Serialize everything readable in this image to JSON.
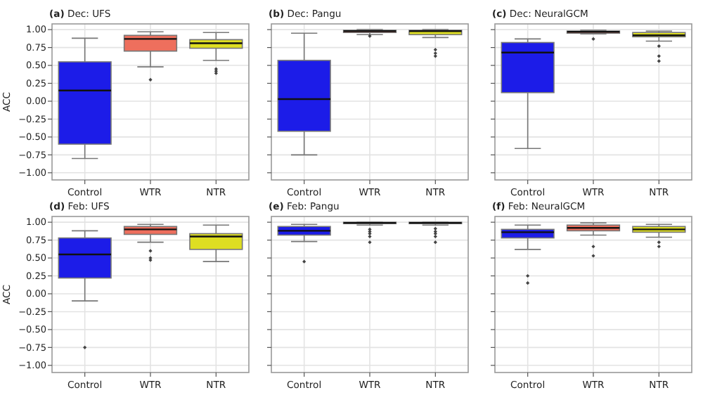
{
  "chart_data": [
    {
      "type": "box",
      "title": "(a) Dec: UFS",
      "ylabel": "ACC",
      "categories": [
        "Control",
        "WTR",
        "NTR"
      ],
      "colors": [
        "#1c1ce8",
        "#ee6f5d",
        "#dede22"
      ],
      "ylim": [
        -1.1,
        1.08
      ],
      "grid": true,
      "yticks": [
        {
          "value": -1.0,
          "label": "−1.00"
        },
        {
          "value": -0.75,
          "label": "−0.75"
        },
        {
          "value": -0.5,
          "label": "−0.50"
        },
        {
          "value": -0.25,
          "label": "−0.25"
        },
        {
          "value": 0,
          "label": "0.00"
        },
        {
          "value": 0.25,
          "label": "0.25"
        },
        {
          "value": 0.5,
          "label": "0.50"
        },
        {
          "value": 0.75,
          "label": "0.75"
        },
        {
          "value": 1.0,
          "label": "1.00"
        }
      ],
      "boxes": [
        {
          "low": -0.8,
          "q1": -0.6,
          "median": 0.15,
          "q3": 0.55,
          "high": 0.88
        },
        {
          "low": 0.48,
          "q1": 0.7,
          "median": 0.87,
          "q3": 0.92,
          "high": 0.97,
          "outliers": [
            0.3
          ]
        },
        {
          "low": 0.57,
          "q1": 0.74,
          "median": 0.81,
          "q3": 0.86,
          "high": 0.96,
          "outliers": [
            0.45,
            0.42,
            0.39
          ]
        }
      ]
    },
    {
      "type": "box",
      "title": "(b) Dec: Pangu",
      "categories": [
        "Control",
        "WTR",
        "NTR"
      ],
      "colors": [
        "#1c1ce8",
        "#ee6f5d",
        "#dede22"
      ],
      "ylim": [
        -1.1,
        1.08
      ],
      "grid": true,
      "tick_labels": "x",
      "yticks": [
        -1.0,
        -0.75,
        -0.5,
        -0.25,
        0,
        0.25,
        0.5,
        0.75,
        1.0
      ],
      "boxes": [
        {
          "low": -0.75,
          "q1": -0.42,
          "median": 0.03,
          "q3": 0.57,
          "high": 0.95
        },
        {
          "low": 0.93,
          "q1": 0.96,
          "median": 0.98,
          "q3": 0.99,
          "high": 1.0,
          "outliers": [
            0.91
          ]
        },
        {
          "low": 0.89,
          "q1": 0.93,
          "median": 0.98,
          "q3": 0.99,
          "high": 1.0,
          "outliers": [
            0.72,
            0.67,
            0.63
          ]
        }
      ]
    },
    {
      "type": "box",
      "title": "(c) Dec: NeuralGCM",
      "categories": [
        "Control",
        "WTR",
        "NTR"
      ],
      "colors": [
        "#1c1ce8",
        "#ee6f5d",
        "#dede22"
      ],
      "ylim": [
        -1.1,
        1.08
      ],
      "grid": true,
      "tick_labels": "x",
      "yticks": [
        -1.0,
        -0.75,
        -0.5,
        -0.25,
        0,
        0.25,
        0.5,
        0.75,
        1.0
      ],
      "boxes": [
        {
          "low": -0.66,
          "q1": 0.12,
          "median": 0.68,
          "q3": 0.82,
          "high": 0.87
        },
        {
          "low": 0.94,
          "q1": 0.95,
          "median": 0.97,
          "q3": 0.98,
          "high": 0.99,
          "outliers": [
            0.87
          ]
        },
        {
          "low": 0.84,
          "q1": 0.9,
          "median": 0.92,
          "q3": 0.96,
          "high": 0.98,
          "outliers": [
            0.77,
            0.63,
            0.56
          ]
        }
      ]
    },
    {
      "type": "box",
      "title": "(d) Feb: UFS",
      "ylabel": "ACC",
      "categories": [
        "Control",
        "WTR",
        "NTR"
      ],
      "colors": [
        "#1c1ce8",
        "#ee6f5d",
        "#dede22"
      ],
      "ylim": [
        -1.1,
        1.08
      ],
      "grid": true,
      "yticks": [
        {
          "value": -1.0,
          "label": "−1.00"
        },
        {
          "value": -0.75,
          "label": "−0.75"
        },
        {
          "value": -0.5,
          "label": "−0.50"
        },
        {
          "value": -0.25,
          "label": "−0.25"
        },
        {
          "value": 0,
          "label": "0.00"
        },
        {
          "value": 0.25,
          "label": "0.25"
        },
        {
          "value": 0.5,
          "label": "0.50"
        },
        {
          "value": 0.75,
          "label": "0.75"
        },
        {
          "value": 1.0,
          "label": "1.00"
        }
      ],
      "boxes": [
        {
          "low": -0.1,
          "q1": 0.22,
          "median": 0.55,
          "q3": 0.78,
          "high": 0.88,
          "outliers": [
            -0.75
          ]
        },
        {
          "low": 0.72,
          "q1": 0.83,
          "median": 0.9,
          "q3": 0.94,
          "high": 0.97,
          "outliers": [
            0.6,
            0.5,
            0.47
          ]
        },
        {
          "low": 0.45,
          "q1": 0.62,
          "median": 0.8,
          "q3": 0.84,
          "high": 0.96
        }
      ]
    },
    {
      "type": "box",
      "title": "(e) Feb: Pangu",
      "categories": [
        "Control",
        "WTR",
        "NTR"
      ],
      "colors": [
        "#1c1ce8",
        "#ee6f5d",
        "#dede22"
      ],
      "ylim": [
        -1.1,
        1.08
      ],
      "grid": true,
      "tick_labels": "x",
      "yticks": [
        -1.0,
        -0.75,
        -0.5,
        -0.25,
        0,
        0.25,
        0.5,
        0.75,
        1.0
      ],
      "boxes": [
        {
          "low": 0.73,
          "q1": 0.82,
          "median": 0.88,
          "q3": 0.94,
          "high": 0.97,
          "outliers": [
            0.45
          ]
        },
        {
          "low": 0.96,
          "q1": 0.98,
          "median": 0.99,
          "q3": 1.0,
          "high": 1.0,
          "outliers": [
            0.9,
            0.87,
            0.84,
            0.8,
            0.72
          ]
        },
        {
          "low": 0.96,
          "q1": 0.98,
          "median": 0.99,
          "q3": 1.0,
          "high": 1.0,
          "outliers": [
            0.91,
            0.87,
            0.84,
            0.8,
            0.72
          ]
        }
      ]
    },
    {
      "type": "box",
      "title": "(f) Feb: NeuralGCM",
      "categories": [
        "Control",
        "WTR",
        "NTR"
      ],
      "colors": [
        "#1c1ce8",
        "#ee6f5d",
        "#dede22"
      ],
      "ylim": [
        -1.1,
        1.08
      ],
      "grid": true,
      "tick_labels": "x",
      "yticks": [
        -1.0,
        -0.75,
        -0.5,
        -0.25,
        0,
        0.25,
        0.5,
        0.75,
        1.0
      ],
      "boxes": [
        {
          "low": 0.62,
          "q1": 0.78,
          "median": 0.86,
          "q3": 0.9,
          "high": 0.96,
          "outliers": [
            0.25,
            0.15
          ]
        },
        {
          "low": 0.82,
          "q1": 0.88,
          "median": 0.92,
          "q3": 0.96,
          "high": 0.99,
          "outliers": [
            0.66,
            0.53
          ]
        },
        {
          "low": 0.79,
          "q1": 0.86,
          "median": 0.9,
          "q3": 0.94,
          "high": 0.97,
          "outliers": [
            0.72,
            0.66
          ]
        }
      ]
    }
  ]
}
